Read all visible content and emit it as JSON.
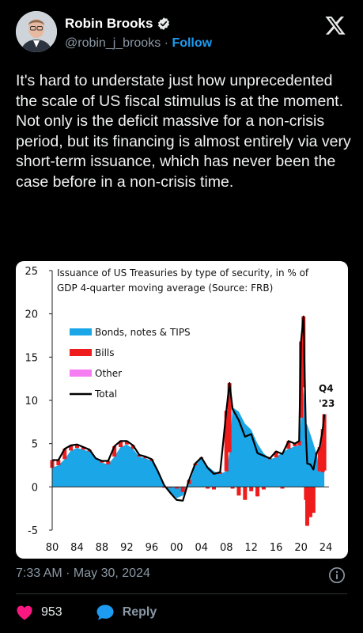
{
  "tweet": {
    "author_name": "Robin Brooks",
    "handle": "@robin_j_brooks",
    "separator": "·",
    "follow_label": "Follow",
    "text": "It's hard to understate just how unprecedented the scale of US fiscal stimulus is at the moment. Not only is the deficit massive for a non-crisis period, but its financing is almost entirely via very short-term issuance, which has never been the case before in a non-crisis time.",
    "timestamp": "7:33 AM · May 30, 2024",
    "likes": "953",
    "reply_label": "Reply"
  },
  "colors": {
    "background": "#000000",
    "like": "#f91880",
    "reply": "#1d9bf0",
    "follow": "#1d9bf0",
    "bonds": "#1ba6e8",
    "bills": "#ee1c1c",
    "other": "#f57ff2",
    "total": "#000000"
  },
  "icons": [
    "verified-badge-icon",
    "x-logo-icon",
    "info-icon",
    "heart-icon",
    "reply-bubble-icon"
  ],
  "chart_data": {
    "type": "area",
    "title_line1": "Issuance of US Treasuries by type of security, in % of",
    "title_line2": "GDP 4-quarter moving average (Source: FRB)",
    "xlim": [
      1980,
      2024.5
    ],
    "ylim": [
      -5,
      25
    ],
    "x_ticks": [
      1980,
      1984,
      1988,
      1992,
      1996,
      2000,
      2004,
      2008,
      2012,
      2016,
      2020,
      2024
    ],
    "x_tick_labels": [
      "80",
      "84",
      "88",
      "92",
      "96",
      "00",
      "04",
      "08",
      "12",
      "16",
      "20",
      "24"
    ],
    "y_ticks": [
      -5,
      0,
      5,
      10,
      15,
      20,
      25
    ],
    "y_tick_labels": [
      "-5",
      "0",
      "5",
      "10",
      "15",
      "20",
      "25"
    ],
    "legend": [
      "Bonds, notes & TIPS",
      "Bills",
      "Other",
      "Total"
    ],
    "legend_position": "upper-left",
    "annotation_line1": "Q4",
    "annotation_line2": "'23",
    "x": [
      1980,
      1981,
      1982,
      1983,
      1984,
      1985,
      1986,
      1987,
      1988,
      1989,
      1990,
      1991,
      1992,
      1993,
      1994,
      1995,
      1996,
      1997,
      1998,
      1999,
      2000,
      2001,
      2002,
      2003,
      2004,
      2005,
      2006,
      2007,
      2008,
      2008.5,
      2009,
      2010,
      2011,
      2012,
      2013,
      2014,
      2015,
      2016,
      2017,
      2018,
      2019,
      2019.7,
      2020,
      2020.4,
      2020.8,
      2021,
      2021.5,
      2022,
      2022.5,
      2023,
      2023.5,
      2023.75
    ],
    "series": [
      {
        "name": "Bonds, notes & TIPS",
        "values": [
          2.2,
          2.5,
          3.2,
          4.2,
          4.5,
          4.3,
          4.1,
          3.3,
          2.8,
          2.6,
          3.5,
          4.6,
          4.9,
          4.4,
          3.5,
          3.3,
          3.0,
          1.8,
          0.3,
          -0.6,
          -1.3,
          -1.0,
          0.3,
          2.5,
          3.3,
          2.4,
          1.8,
          1.5,
          1.8,
          4.0,
          9.2,
          8.7,
          7.3,
          6.6,
          5.0,
          3.9,
          3.2,
          3.4,
          4.0,
          4.4,
          4.7,
          4.8,
          8.0,
          11.5,
          7.3,
          7.2,
          6.1,
          5.0,
          3.8,
          1.8,
          1.7,
          1.9
        ]
      },
      {
        "name": "Bills",
        "values": [
          0.9,
          0.6,
          1.2,
          0.6,
          0.4,
          0.3,
          0.2,
          0.0,
          0.2,
          0.4,
          1.2,
          0.7,
          0.4,
          0.4,
          0.2,
          0.2,
          0.2,
          0.0,
          -0.1,
          -0.1,
          -0.2,
          -0.6,
          0.5,
          0.2,
          0.1,
          -0.2,
          -0.3,
          0.2,
          7.0,
          8.0,
          -0.2,
          -1.0,
          -1.5,
          -0.5,
          -1.1,
          -0.3,
          0.1,
          0.7,
          -0.2,
          0.9,
          0.3,
          0.5,
          8.8,
          8.2,
          -1.5,
          -4.5,
          -3.5,
          -3.0,
          0.1,
          2.8,
          5.0,
          6.5
        ]
      },
      {
        "name": "Other",
        "values": [
          0,
          0,
          0,
          0,
          0,
          0,
          0,
          0,
          0,
          0,
          0,
          0,
          0,
          0,
          0,
          0,
          0,
          0,
          0,
          0,
          0,
          0,
          0,
          0,
          0,
          0,
          0,
          0,
          0,
          0,
          0,
          0,
          0,
          0,
          0,
          0,
          0,
          0,
          0,
          0,
          0,
          0,
          0,
          0,
          0,
          0,
          0,
          0,
          0,
          0,
          0,
          0
        ]
      },
      {
        "name": "Total",
        "values": [
          3.1,
          3.1,
          4.4,
          4.8,
          4.9,
          4.6,
          4.3,
          3.3,
          3.0,
          3.0,
          4.7,
          5.3,
          5.3,
          4.8,
          3.7,
          3.5,
          3.2,
          1.8,
          0.2,
          -0.7,
          -1.5,
          -1.6,
          0.8,
          2.7,
          3.4,
          2.2,
          1.5,
          1.7,
          8.8,
          12.0,
          9.0,
          7.7,
          5.8,
          6.1,
          3.9,
          3.6,
          3.3,
          4.1,
          3.8,
          5.3,
          5.0,
          5.3,
          16.8,
          19.7,
          5.8,
          2.7,
          2.6,
          2.0,
          3.9,
          4.6,
          6.7,
          8.4
        ]
      }
    ]
  }
}
